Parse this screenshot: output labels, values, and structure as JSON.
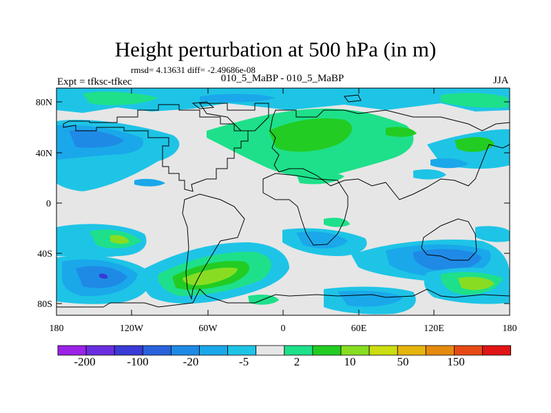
{
  "header": {
    "title": "Height perturbation at 500 hPa (in m)",
    "stats": "rmsd= 4.13631 diff= -2.49686e-08",
    "left_label": "Expt = tfksc-tfkec",
    "center_label": "010_5_MaBP - 010_5_MaBP",
    "right_label": "JJA"
  },
  "axes": {
    "lat_labels": [
      "80N",
      "40N",
      "0",
      "40S",
      "80S"
    ],
    "lon_labels": [
      "180",
      "120W",
      "60W",
      "0",
      "60E",
      "120E",
      "180"
    ],
    "lat_range": [
      -90,
      90
    ],
    "lon_range": [
      -180,
      180
    ]
  },
  "colorbar": {
    "labels": [
      "-200",
      "-100",
      "-20",
      "-5",
      "2",
      "10",
      "50",
      "150"
    ],
    "colors": [
      "#9b22e6",
      "#6a2ee0",
      "#3a3ad6",
      "#2a62dc",
      "#1f8ae6",
      "#1aa8ea",
      "#1ec4e6",
      "#e6e6e6",
      "#1ee08a",
      "#22cc22",
      "#88dd22",
      "#ccdd11",
      "#e6b40e",
      "#e68a10",
      "#e64a14",
      "#e01414"
    ]
  }
}
